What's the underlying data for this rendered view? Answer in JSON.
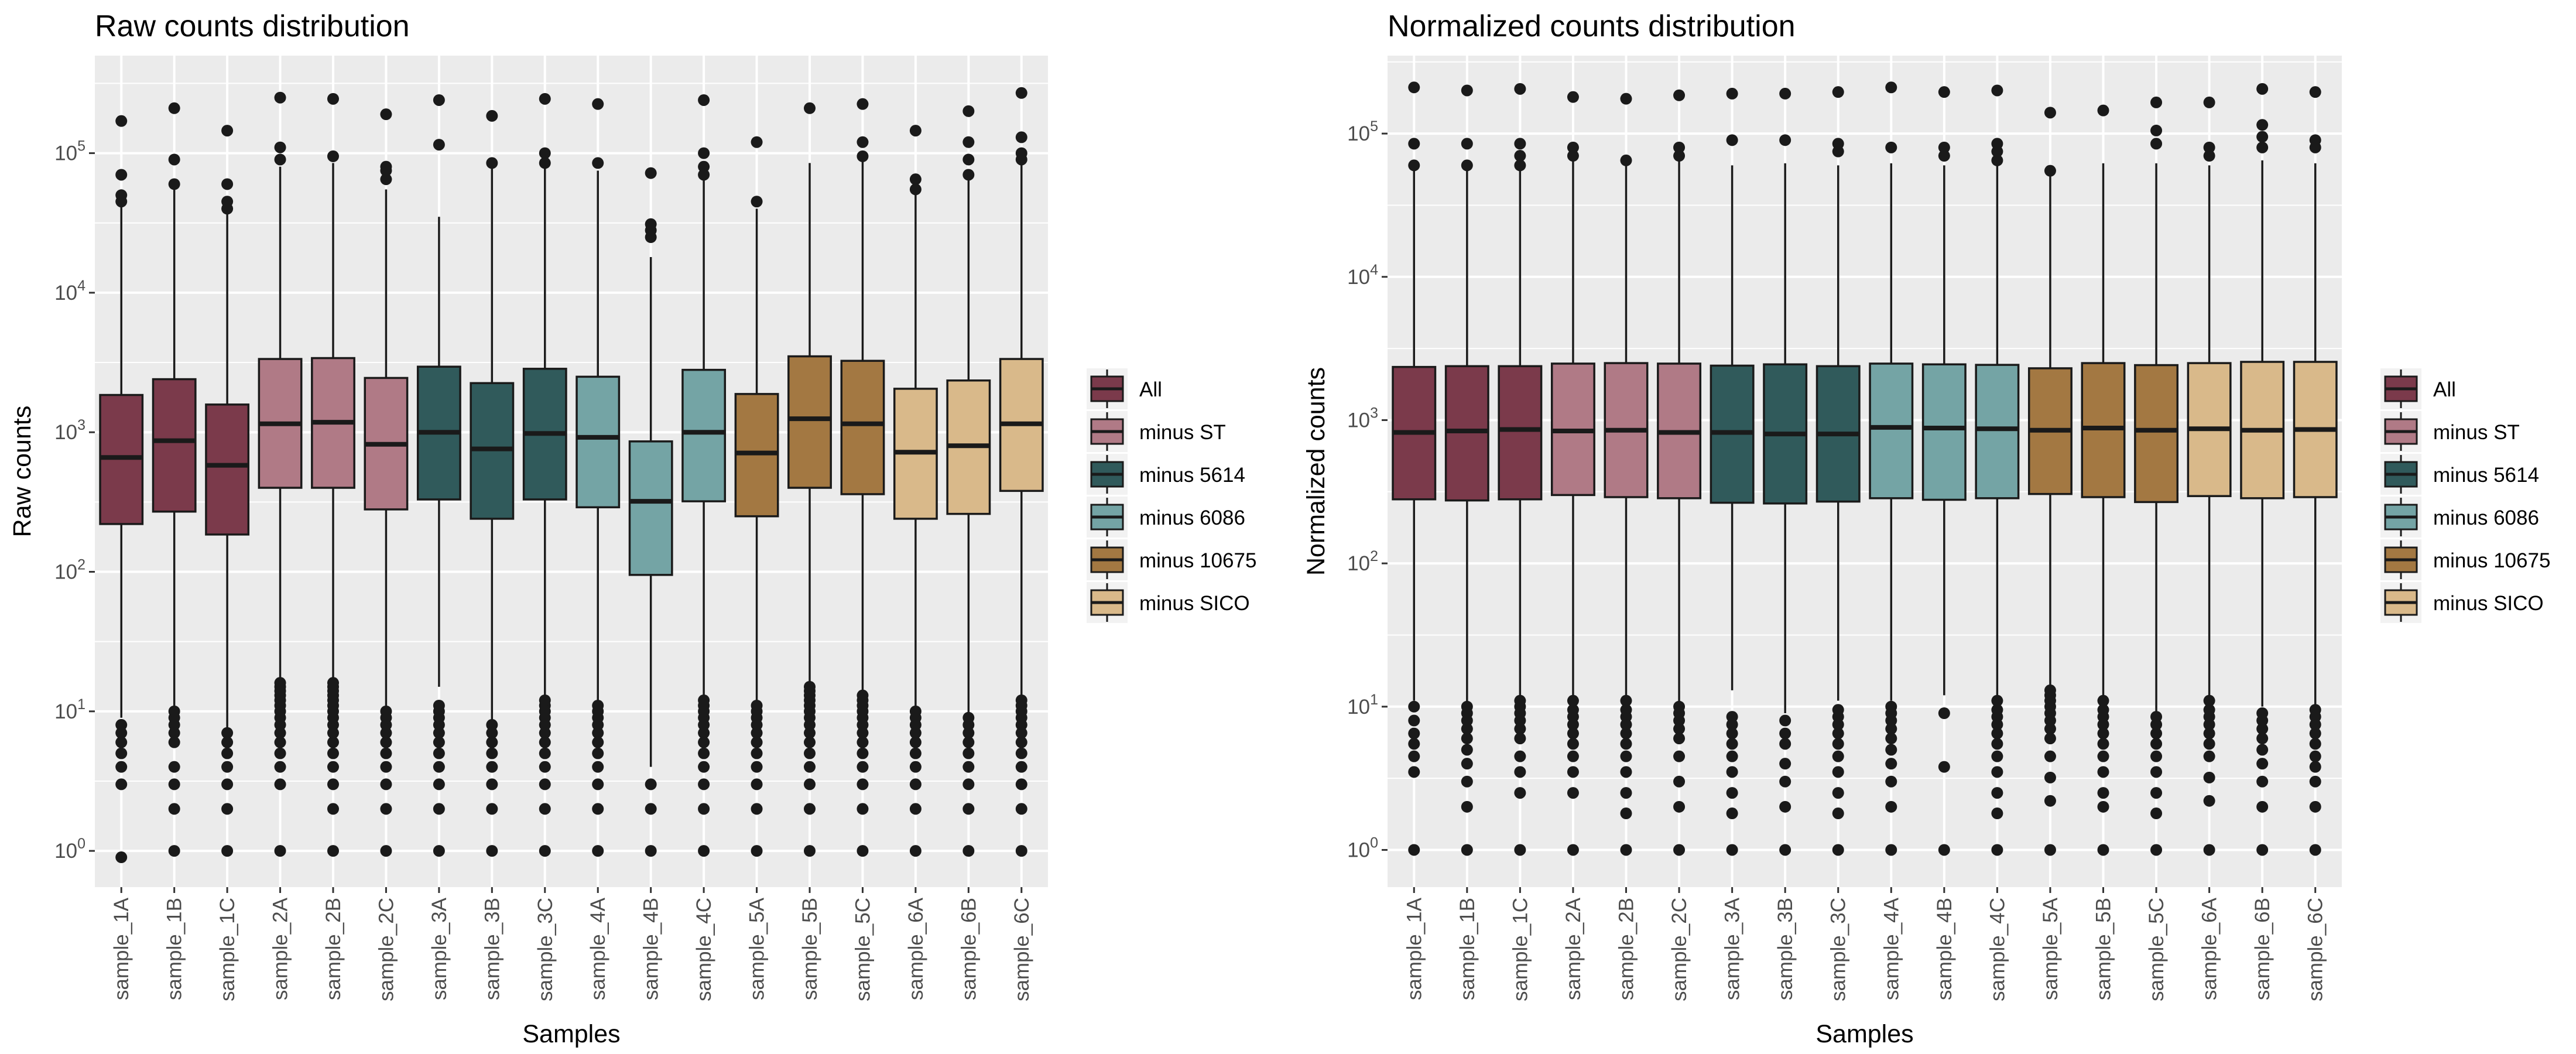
{
  "chart_data": [
    {
      "type": "boxplot",
      "title": "Raw counts distribution",
      "xlabel": "Samples",
      "ylabel": "Raw counts",
      "y_scale": "log10",
      "ylim": [
        0.55,
        500000
      ],
      "y_ticks": [
        {
          "base": "10",
          "exp": "0"
        },
        {
          "base": "10",
          "exp": "1"
        },
        {
          "base": "10",
          "exp": "2"
        },
        {
          "base": "10",
          "exp": "3"
        },
        {
          "base": "10",
          "exp": "4"
        },
        {
          "base": "10",
          "exp": "5"
        }
      ],
      "grid": true,
      "legend_position": "right",
      "categories": [
        "sample_1A",
        "sample_1B",
        "sample_1C",
        "sample_2A",
        "sample_2B",
        "sample_2C",
        "sample_3A",
        "sample_3B",
        "sample_3C",
        "sample_4A",
        "sample_4B",
        "sample_4C",
        "sample_5A",
        "sample_5B",
        "sample_5C",
        "sample_6A",
        "sample_6B",
        "sample_6C"
      ],
      "groups": [
        "All",
        "All",
        "All",
        "minus ST",
        "minus ST",
        "minus ST",
        "minus 5614",
        "minus 5614",
        "minus 5614",
        "minus 6086",
        "minus 6086",
        "minus 6086",
        "minus 10675",
        "minus 10675",
        "minus 10675",
        "minus SICO",
        "minus SICO",
        "minus SICO"
      ],
      "q1": [
        220,
        270,
        185,
        400,
        400,
        280,
        330,
        240,
        330,
        290,
        95,
        320,
        250,
        400,
        360,
        240,
        260,
        380
      ],
      "median": [
        660,
        870,
        580,
        1150,
        1180,
        820,
        1000,
        760,
        980,
        920,
        320,
        1000,
        710,
        1250,
        1150,
        720,
        800,
        1150
      ],
      "q3": [
        1850,
        2400,
        1580,
        3350,
        3400,
        2450,
        2950,
        2250,
        2850,
        2500,
        860,
        2800,
        1880,
        3500,
        3250,
        2050,
        2350,
        3350
      ],
      "whisker_low": [
        9,
        10,
        7,
        17,
        16,
        10,
        15,
        8,
        13,
        11,
        4,
        12,
        12,
        15,
        13,
        10,
        9,
        13
      ],
      "whisker_high": [
        45000,
        55000,
        38000,
        80000,
        85000,
        55000,
        35000,
        80000,
        80000,
        75000,
        18000,
        65000,
        40000,
        85000,
        90000,
        55000,
        65000,
        85000
      ],
      "outliers": [
        [
          0.9,
          3,
          4,
          5,
          6,
          7,
          8,
          45000,
          50000,
          70000,
          170000
        ],
        [
          1,
          2,
          3,
          4,
          6,
          7,
          8,
          9,
          10,
          60000,
          90000,
          210000
        ],
        [
          1,
          2,
          3,
          4,
          5,
          6,
          7,
          40000,
          45000,
          60000,
          145000
        ],
        [
          1,
          3,
          4,
          5,
          6,
          7,
          8,
          9,
          10,
          11,
          12,
          13,
          14,
          15,
          16,
          90000,
          110000,
          250000
        ],
        [
          1,
          2,
          3,
          4,
          5,
          6,
          7,
          8,
          9,
          10,
          11,
          12,
          13,
          14,
          15,
          16,
          95000,
          245000
        ],
        [
          1,
          2,
          3,
          4,
          5,
          6,
          7,
          8,
          9,
          10,
          65000,
          75000,
          80000,
          190000
        ],
        [
          1,
          2,
          3,
          4,
          5,
          6,
          7,
          8,
          9,
          10,
          11,
          115000,
          240000
        ],
        [
          1,
          2,
          3,
          4,
          5,
          6,
          7,
          8,
          85000,
          185000
        ],
        [
          1,
          2,
          3,
          4,
          5,
          6,
          7,
          8,
          9,
          10,
          11,
          12,
          85000,
          100000,
          245000
        ],
        [
          1,
          2,
          3,
          4,
          5,
          6,
          7,
          8,
          9,
          10,
          11,
          85000,
          225000
        ],
        [
          1,
          2,
          3,
          25000,
          28000,
          31000,
          72000
        ],
        [
          1,
          2,
          3,
          4,
          5,
          6,
          7,
          8,
          9,
          10,
          11,
          12,
          70000,
          80000,
          100000,
          240000
        ],
        [
          1,
          2,
          3,
          4,
          5,
          6,
          7,
          8,
          9,
          10,
          11,
          45000,
          120000
        ],
        [
          1,
          2,
          3,
          4,
          5,
          6,
          7,
          8,
          9,
          10,
          11,
          12,
          13,
          14,
          15,
          210000
        ],
        [
          1,
          2,
          3,
          4,
          5,
          6,
          7,
          8,
          9,
          10,
          11,
          12,
          13,
          95000,
          120000,
          225000
        ],
        [
          1,
          2,
          3,
          4,
          5,
          6,
          7,
          8,
          9,
          10,
          55000,
          65000,
          145000
        ],
        [
          1,
          2,
          3,
          4,
          5,
          6,
          7,
          8,
          9,
          70000,
          90000,
          120000,
          200000
        ],
        [
          1,
          2,
          3,
          4,
          5,
          6,
          7,
          8,
          9,
          10,
          11,
          12,
          90000,
          100000,
          130000,
          270000
        ]
      ]
    },
    {
      "type": "boxplot",
      "title": "Normalized counts distribution",
      "xlabel": "Samples",
      "ylabel": "Normalized counts",
      "y_scale": "log10",
      "ylim": [
        0.55,
        350000
      ],
      "y_ticks": [
        {
          "base": "10",
          "exp": "0"
        },
        {
          "base": "10",
          "exp": "1"
        },
        {
          "base": "10",
          "exp": "2"
        },
        {
          "base": "10",
          "exp": "3"
        },
        {
          "base": "10",
          "exp": "4"
        },
        {
          "base": "10",
          "exp": "5"
        }
      ],
      "grid": true,
      "legend_position": "right",
      "categories": [
        "sample_1A",
        "sample_1B",
        "sample_1C",
        "sample_2A",
        "sample_2B",
        "sample_2C",
        "sample_3A",
        "sample_3B",
        "sample_3C",
        "sample_4A",
        "sample_4B",
        "sample_4C",
        "sample_5A",
        "sample_5B",
        "sample_5C",
        "sample_6A",
        "sample_6B",
        "sample_6C"
      ],
      "groups": [
        "All",
        "All",
        "All",
        "minus ST",
        "minus ST",
        "minus ST",
        "minus 5614",
        "minus 5614",
        "minus 5614",
        "minus 6086",
        "minus 6086",
        "minus 6086",
        "minus 10675",
        "minus 10675",
        "minus 10675",
        "minus SICO",
        "minus SICO",
        "minus SICO"
      ],
      "q1": [
        280,
        275,
        280,
        300,
        290,
        285,
        265,
        262,
        270,
        285,
        278,
        285,
        305,
        290,
        268,
        295,
        285,
        290
      ],
      "median": [
        820,
        840,
        860,
        840,
        850,
        820,
        820,
        800,
        800,
        890,
        880,
        870,
        850,
        880,
        850,
        870,
        850,
        860
      ],
      "q3": [
        2350,
        2380,
        2380,
        2480,
        2500,
        2480,
        2400,
        2450,
        2380,
        2480,
        2450,
        2430,
        2300,
        2500,
        2420,
        2500,
        2550,
        2550
      ],
      "whisker_low": [
        11,
        10,
        11,
        12,
        12,
        10,
        13,
        9,
        11,
        11,
        12,
        11,
        14,
        11,
        9,
        12,
        10,
        10
      ],
      "whisker_high": [
        58000,
        60000,
        62000,
        65000,
        62000,
        65000,
        60000,
        62000,
        60000,
        62000,
        60000,
        60000,
        52000,
        62000,
        62000,
        60000,
        65000,
        62000
      ],
      "outliers": [
        [
          1,
          3.5,
          4.5,
          5.5,
          6.5,
          8,
          10,
          60000,
          85000,
          210000
        ],
        [
          1,
          2,
          3,
          4,
          5,
          6,
          7,
          8,
          9,
          10,
          60000,
          85000,
          200000
        ],
        [
          1,
          2.5,
          3.5,
          4.5,
          6,
          7,
          8,
          9,
          10,
          11,
          60000,
          70000,
          85000,
          205000
        ],
        [
          1,
          2.5,
          3.5,
          4.5,
          5.5,
          6.5,
          7.5,
          8.5,
          9.5,
          11,
          70000,
          80000,
          180000
        ],
        [
          1,
          1.8,
          2.5,
          3.5,
          4.5,
          5.5,
          6.5,
          7.5,
          8.5,
          9.5,
          11,
          65000,
          175000
        ],
        [
          1,
          2,
          3,
          4.5,
          6,
          7,
          8,
          9,
          10,
          70000,
          80000,
          185000
        ],
        [
          1,
          1.8,
          2.5,
          3.5,
          4.5,
          5.5,
          6.5,
          7.5,
          8.5,
          90000,
          190000
        ],
        [
          1,
          2,
          3,
          4,
          5.5,
          6.5,
          8,
          90000,
          190000
        ],
        [
          1,
          1.8,
          2.5,
          3.5,
          4.5,
          5.5,
          6.5,
          7.5,
          8.5,
          9.5,
          75000,
          85000,
          195000
        ],
        [
          1,
          2,
          3,
          4,
          5,
          6,
          7,
          8,
          9,
          10,
          80000,
          210000
        ],
        [
          1,
          3.8,
          9,
          70000,
          80000,
          195000
        ],
        [
          1,
          1.8,
          2.5,
          3.5,
          4.5,
          5.5,
          6.5,
          7.5,
          8.5,
          9.5,
          11,
          65000,
          75000,
          85000,
          200000
        ],
        [
          1,
          2.2,
          3.2,
          4.5,
          6,
          7,
          8,
          9,
          10,
          11,
          12,
          13,
          55000,
          140000
        ],
        [
          1,
          2,
          2.5,
          3.5,
          4.5,
          5.5,
          6.5,
          7.5,
          8.5,
          9.5,
          11,
          145000
        ],
        [
          1,
          1.8,
          2.5,
          3.5,
          4.5,
          5.5,
          6.5,
          7.5,
          8.5,
          85000,
          105000,
          165000
        ],
        [
          1,
          2.2,
          3.2,
          4.5,
          5.5,
          6.5,
          7.5,
          8.5,
          9.5,
          11,
          70000,
          80000,
          165000
        ],
        [
          1,
          2,
          3,
          4,
          5,
          6,
          7,
          8,
          9,
          80000,
          95000,
          115000,
          205000
        ],
        [
          1,
          2,
          3,
          3.8,
          4.5,
          5.5,
          6.5,
          7.5,
          8.5,
          9.5,
          80000,
          90000,
          195000
        ]
      ]
    }
  ],
  "legend": {
    "entries": [
      {
        "label": "All",
        "color": "#7B3A4B"
      },
      {
        "label": "minus ST",
        "color": "#B07A86"
      },
      {
        "label": "minus 5614",
        "color": "#305A5B"
      },
      {
        "label": "minus 6086",
        "color": "#74A4A5"
      },
      {
        "label": "minus 10675",
        "color": "#A37842"
      },
      {
        "label": "minus SICO",
        "color": "#D9B98A"
      }
    ]
  },
  "colors": {
    "panel_background": "#EBEBEB",
    "grid": "#FFFFFF",
    "box_outline": "#1a1a1a",
    "outlier": "#1a1a1a",
    "tick_text": "#4d4d4d"
  }
}
